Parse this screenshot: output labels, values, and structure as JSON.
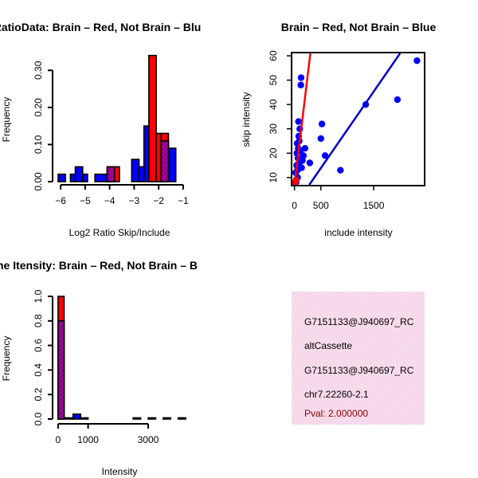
{
  "chart_data": [
    {
      "type": "bar",
      "title": "RatioData: Brain – Red, Not Brain – Blu",
      "xlabel": "Log2 Ratio Skip/Include",
      "ylabel": "Frequency",
      "xlim": [
        -6.1,
        -0.9
      ],
      "ylim": [
        0,
        0.35
      ],
      "xticks": [
        -6,
        -5,
        -4,
        -3,
        -2,
        -1
      ],
      "xtick_labels": [
        "−6",
        "−5",
        "−4",
        "−3",
        "−2",
        "−1"
      ],
      "yticks": [
        0,
        0.1,
        0.2,
        0.3
      ],
      "ytick_labels": [
        "0.00",
        "0.10",
        "0.20",
        "0.30"
      ],
      "series": [
        {
          "name": "Not Brain",
          "color": "#0000FF",
          "bins": [
            [
              -6.1,
              -5.8,
              0.02
            ],
            [
              -5.6,
              -5.4,
              0.02
            ],
            [
              -5.4,
              -5.1,
              0.04
            ],
            [
              -5.1,
              -4.9,
              0.02
            ],
            [
              -4.6,
              -4.1,
              0.02
            ],
            [
              -4.1,
              -3.8,
              0.04
            ],
            [
              -3.1,
              -2.8,
              0.06
            ],
            [
              -2.8,
              -2.6,
              0.04
            ],
            [
              -2.6,
              -2.3,
              0.15
            ],
            [
              -2.3,
              -1.9,
              0.11
            ],
            [
              -1.9,
              -1.6,
              0.11
            ],
            [
              -1.6,
              -1.3,
              0.09
            ]
          ]
        },
        {
          "name": "Brain",
          "color": "#FF0000",
          "bins": [
            [
              -4.1,
              -3.6,
              0.04
            ],
            [
              -2.4,
              -2.1,
              0.34
            ],
            [
              -2.1,
              -1.9,
              0.13
            ],
            [
              -1.9,
              -1.6,
              0.13
            ]
          ]
        }
      ],
      "overlap_color": "#9B1C9B"
    },
    {
      "type": "scatter",
      "title": "Brain – Red, Not Brain – Blue",
      "xlabel": "include intensity",
      "ylabel": "skip intensity",
      "xlim": [
        -40,
        2450
      ],
      "ylim": [
        7,
        61
      ],
      "xticks": [
        0,
        500,
        1500
      ],
      "xtick_labels": [
        "0",
        "500",
        "1500"
      ],
      "yticks": [
        10,
        20,
        30,
        40,
        50,
        60
      ],
      "ytick_labels": [
        "10",
        "20",
        "30",
        "40",
        "50",
        "60"
      ],
      "points": [
        [
          20,
          12
        ],
        [
          30,
          8
        ],
        [
          40,
          15
        ],
        [
          45,
          20
        ],
        [
          50,
          24
        ],
        [
          55,
          13
        ],
        [
          60,
          10
        ],
        [
          65,
          18
        ],
        [
          70,
          22
        ],
        [
          75,
          33
        ],
        [
          80,
          27
        ],
        [
          85,
          16
        ],
        [
          90,
          25
        ],
        [
          100,
          30
        ],
        [
          110,
          21
        ],
        [
          120,
          48
        ],
        [
          125,
          51
        ],
        [
          135,
          14
        ],
        [
          150,
          17
        ],
        [
          170,
          19
        ],
        [
          200,
          22
        ],
        [
          290,
          16
        ],
        [
          500,
          26
        ],
        [
          520,
          32
        ],
        [
          580,
          19
        ],
        [
          870,
          13
        ],
        [
          1350,
          40
        ],
        [
          1950,
          42
        ],
        [
          2320,
          58
        ]
      ],
      "point_color": "#0000FF",
      "lines": [
        {
          "name": "Brain fit",
          "color": "#FF0000",
          "x": [
            0,
            300
          ],
          "y": [
            7,
            61
          ]
        },
        {
          "name": "Not Brain fit",
          "color": "#0000CC",
          "x": [
            280,
            2000
          ],
          "y": [
            7,
            61
          ]
        }
      ],
      "red_points": [
        [
          10,
          8
        ],
        [
          30,
          9
        ]
      ]
    },
    {
      "type": "bar",
      "title": "ne Itensity: Brain – Red, Not Brain – B",
      "xlabel": "Intensity",
      "ylabel": "Frequency",
      "xlim": [
        -50,
        4300
      ],
      "ylim": [
        0,
        1.0
      ],
      "xticks": [
        0,
        1000,
        3000
      ],
      "xtick_labels": [
        "0",
        "1000",
        "3000"
      ],
      "yticks": [
        0,
        0.2,
        0.4,
        0.6,
        0.8,
        1.0
      ],
      "ytick_labels": [
        "0.0",
        "0.2",
        "0.4",
        "0.6",
        "0.8",
        "1.0"
      ],
      "series": [
        {
          "name": "Not Brain",
          "color": "#0000FF",
          "bins": [
            [
              0,
              200,
              0.8
            ],
            [
              200,
              500,
              0.01
            ],
            [
              500,
              750,
              0.04
            ],
            [
              750,
              1000,
              0.01
            ],
            [
              2500,
              2750,
              0.01
            ],
            [
              3000,
              3250,
              0.01
            ],
            [
              3500,
              3750,
              0.01
            ],
            [
              4000,
              4250,
              0.01
            ]
          ]
        },
        {
          "name": "Brain",
          "color": "#FF0000",
          "bins": [
            [
              0,
              200,
              1.0
            ]
          ]
        }
      ],
      "overlap_color": "#9B1C9B"
    }
  ],
  "info_panel": {
    "lines": [
      "G7151133@J940697_RC",
      "altCassette",
      "G7151133@J940697_RC",
      "chr7.22260-2.1"
    ],
    "pval": "Pval: 2.000000",
    "background": "#F5D4E8",
    "pval_color": "#8B0000"
  }
}
